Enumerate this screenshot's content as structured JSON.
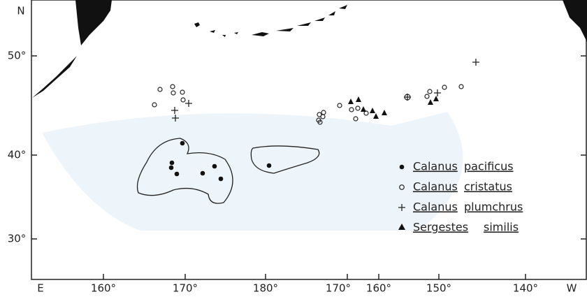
{
  "axes": {
    "lat_labels": [
      "N",
      "50°",
      "40°",
      "30°"
    ],
    "lon_labels": [
      "E",
      "160°",
      "170°",
      "180°",
      "170°",
      "160°",
      "150°",
      "140°",
      "W"
    ]
  },
  "legend": [
    {
      "genus": "Calanus",
      "species": "pacificus"
    },
    {
      "genus": "Calanus",
      "species": "cristatus"
    },
    {
      "genus": "Calanus",
      "species": "plumchrus"
    },
    {
      "genus": "Sergestes",
      "species": "similis"
    }
  ]
}
